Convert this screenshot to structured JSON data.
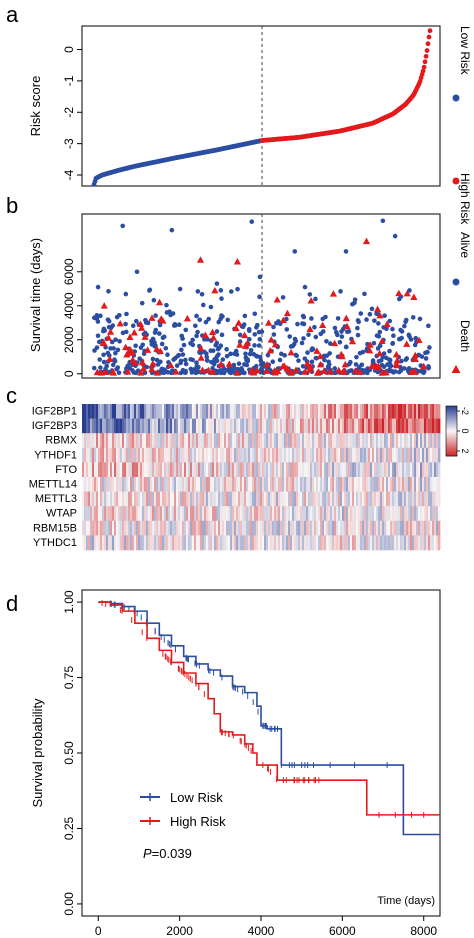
{
  "colors": {
    "low": "#2b4ea2",
    "high": "#e31a1c",
    "axis": "#000000"
  },
  "chart_data": [
    {
      "panel_label": "a",
      "type": "scatter",
      "ylabel": "Risk score",
      "ylim": [
        -4.35,
        0.75
      ],
      "yticks": [
        0,
        -1,
        -2,
        -3,
        -4
      ],
      "n_samples": 8200,
      "cutoff_index": 4100,
      "cutoff_value": -2.9,
      "curve_points": [
        [
          0,
          -4.3
        ],
        [
          50,
          -4.1
        ],
        [
          200,
          -4.0
        ],
        [
          600,
          -3.85
        ],
        [
          1000,
          -3.72
        ],
        [
          2000,
          -3.45
        ],
        [
          3000,
          -3.2
        ],
        [
          4100,
          -2.9
        ],
        [
          5000,
          -2.8
        ],
        [
          6000,
          -2.6
        ],
        [
          6800,
          -2.35
        ],
        [
          7300,
          -2.05
        ],
        [
          7600,
          -1.75
        ],
        [
          7800,
          -1.45
        ],
        [
          7950,
          -1.05
        ],
        [
          8050,
          -0.6
        ],
        [
          8120,
          -0.1
        ],
        [
          8170,
          0.35
        ],
        [
          8200,
          0.6
        ]
      ],
      "legend": [
        {
          "label": "High Risk",
          "color": "#e31a1c"
        },
        {
          "label": "Low Risk",
          "color": "#2b4ea2"
        }
      ],
      "legend_position": "right"
    },
    {
      "panel_label": "b",
      "type": "scatter",
      "ylabel": "Survival time (days)",
      "ylim": [
        -250,
        9400
      ],
      "yticks": [
        0,
        2000,
        4000,
        6000
      ],
      "n_samples": 8200,
      "cutoff_index": 4100,
      "legend": [
        {
          "label": "Death",
          "color": "#e31a1c",
          "marker": "triangle"
        },
        {
          "label": "Alive",
          "color": "#2b4ea2",
          "marker": "circle"
        }
      ],
      "legend_position": "right",
      "highlights": [
        {
          "x": 700,
          "y": 8700,
          "status": "Alive"
        },
        {
          "x": 1900,
          "y": 8450,
          "status": "Alive"
        },
        {
          "x": 3850,
          "y": 8950,
          "status": "Alive"
        },
        {
          "x": 7050,
          "y": 9000,
          "status": "Alive"
        },
        {
          "x": 7350,
          "y": 8100,
          "status": "Alive"
        },
        {
          "x": 4900,
          "y": 7200,
          "status": "Alive"
        },
        {
          "x": 1050,
          "y": 6000,
          "status": "Alive"
        },
        {
          "x": 6150,
          "y": 7200,
          "status": "Alive"
        },
        {
          "x": 4050,
          "y": 5700,
          "status": "Alive"
        },
        {
          "x": 3500,
          "y": 6600,
          "status": "Death"
        },
        {
          "x": 2600,
          "y": 6700,
          "status": "Death"
        },
        {
          "x": 6650,
          "y": 7800,
          "status": "Death"
        },
        {
          "x": 250,
          "y": 4000,
          "status": "Death"
        },
        {
          "x": 1600,
          "y": 4200,
          "status": "Death"
        },
        {
          "x": 2950,
          "y": 4900,
          "status": "Death"
        },
        {
          "x": 5300,
          "y": 4300,
          "status": "Death"
        },
        {
          "x": 100,
          "y": 5100,
          "status": "Alive"
        },
        {
          "x": 1350,
          "y": 4900,
          "status": "Alive"
        },
        {
          "x": 3000,
          "y": 5300,
          "status": "Alive"
        },
        {
          "x": 5150,
          "y": 5100,
          "status": "Alive"
        },
        {
          "x": 6600,
          "y": 4700,
          "status": "Alive"
        },
        {
          "x": 7450,
          "y": 4400,
          "status": "Alive"
        },
        {
          "x": 7700,
          "y": 4900,
          "status": "Alive"
        }
      ]
    },
    {
      "panel_label": "c",
      "type": "heatmap",
      "rows": [
        "IGF2BP1",
        "IGF2BP3",
        "RBMX",
        "YTHDF1",
        "FTO",
        "METTL14",
        "METTL3",
        "WTAP",
        "RBM15B",
        "YTHDC1"
      ],
      "row_trend": [
        -1,
        -1,
        0.3,
        0.2,
        0.55,
        0.15,
        0.15,
        0.2,
        0.05,
        -0.15
      ],
      "colorbar_ticks": [
        -2,
        0,
        2
      ],
      "colorbar_range": [
        -2.5,
        2.5
      ]
    },
    {
      "panel_label": "d",
      "type": "line",
      "ylabel": "Survival probability",
      "xlabel": "Time (days)",
      "xlim": [
        -400,
        8400
      ],
      "ylim": [
        -0.04,
        1.04
      ],
      "xticks": [
        0,
        2000,
        4000,
        6000,
        8000
      ],
      "yticks": [
        0.0,
        0.25,
        0.5,
        0.75,
        1.0
      ],
      "ytick_labels": [
        "0.00",
        "0.25",
        "0.50",
        "0.75",
        "1.00"
      ],
      "annotation": {
        "prefix": "P",
        "text": "=0.039"
      },
      "legend": [
        {
          "label": "Low Risk",
          "color": "#2b4ea2"
        },
        {
          "label": "High Risk",
          "color": "#e31a1c"
        }
      ],
      "series": [
        {
          "name": "Low Risk",
          "color": "#2b4ea2",
          "points": [
            [
              0,
              1.0
            ],
            [
              300,
              0.995
            ],
            [
              600,
              0.985
            ],
            [
              900,
              0.97
            ],
            [
              1200,
              0.93
            ],
            [
              1500,
              0.89
            ],
            [
              1800,
              0.855
            ],
            [
              2100,
              0.82
            ],
            [
              2400,
              0.795
            ],
            [
              2700,
              0.775
            ],
            [
              3000,
              0.755
            ],
            [
              3300,
              0.72
            ],
            [
              3600,
              0.7
            ],
            [
              3900,
              0.655
            ],
            [
              4000,
              0.59
            ],
            [
              4150,
              0.59
            ],
            [
              4150,
              0.58
            ],
            [
              4500,
              0.58
            ],
            [
              4500,
              0.46
            ],
            [
              7500,
              0.46
            ],
            [
              7500,
              0.23
            ],
            [
              8400,
              0.23
            ]
          ]
        },
        {
          "name": "High Risk",
          "color": "#e31a1c",
          "points": [
            [
              0,
              1.0
            ],
            [
              300,
              0.99
            ],
            [
              600,
              0.97
            ],
            [
              900,
              0.93
            ],
            [
              1200,
              0.88
            ],
            [
              1500,
              0.84
            ],
            [
              1800,
              0.8
            ],
            [
              2100,
              0.765
            ],
            [
              2400,
              0.73
            ],
            [
              2700,
              0.68
            ],
            [
              2850,
              0.63
            ],
            [
              3000,
              0.57
            ],
            [
              3300,
              0.56
            ],
            [
              3600,
              0.53
            ],
            [
              3800,
              0.5
            ],
            [
              3900,
              0.46
            ],
            [
              4100,
              0.46
            ],
            [
              4400,
              0.41
            ],
            [
              6550,
              0.41
            ],
            [
              6600,
              0.295
            ],
            [
              8400,
              0.295
            ]
          ]
        }
      ]
    }
  ]
}
